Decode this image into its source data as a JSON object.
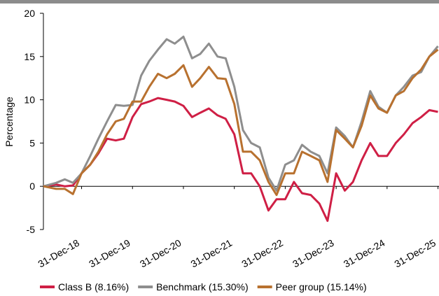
{
  "chart_data": {
    "type": "line",
    "y_label": "Percentage",
    "x": [
      2018.25,
      2018.5,
      2018.67,
      2018.83,
      2019.0,
      2019.17,
      2019.33,
      2019.5,
      2019.67,
      2019.83,
      2020.0,
      2020.17,
      2020.33,
      2020.5,
      2020.67,
      2020.83,
      2021.0,
      2021.17,
      2021.33,
      2021.5,
      2021.67,
      2021.83,
      2022.0,
      2022.17,
      2022.33,
      2022.5,
      2022.67,
      2022.83,
      2023.0,
      2023.17,
      2023.33,
      2023.5,
      2023.67,
      2023.83,
      2024.0,
      2024.17,
      2024.33,
      2024.5,
      2024.67,
      2024.83,
      2025.0,
      2025.17,
      2025.33,
      2025.5,
      2025.67,
      2025.83,
      2026.0
    ],
    "series": [
      {
        "name": "Class B (8.16%)",
        "color": "#cf1f45",
        "values": [
          0,
          0.2,
          0,
          0.1,
          1.5,
          2.5,
          3.8,
          5.5,
          5.3,
          5.5,
          8,
          9.5,
          9.8,
          10.2,
          10,
          9.8,
          9.3,
          8,
          8.5,
          9,
          8.2,
          7.8,
          6,
          1.5,
          1.5,
          0,
          -2.8,
          -1.5,
          -1.5,
          0.5,
          -0.8,
          -1,
          -2,
          -4,
          1.5,
          -0.5,
          0.5,
          3,
          5,
          3.5,
          3.5,
          5,
          6,
          7.3,
          8,
          8.8,
          8.6
        ]
      },
      {
        "name": "Benchmark (15.30%)",
        "color": "#8e8e8e",
        "values": [
          0,
          0.4,
          0.8,
          0.4,
          1.5,
          3.5,
          5.5,
          7.5,
          9.4,
          9.3,
          9.4,
          12.8,
          14.5,
          15.8,
          17,
          16.5,
          17.3,
          14.8,
          15.3,
          16.5,
          15,
          14.8,
          11.5,
          6.5,
          5,
          4.5,
          1,
          -0.5,
          2.5,
          3,
          4.8,
          4,
          3.5,
          1.5,
          6.8,
          5.8,
          4.5,
          7.5,
          11,
          9.2,
          8.5,
          10.5,
          11.5,
          12.8,
          13.2,
          15,
          16.2
        ]
      },
      {
        "name": "Peer group (15.14%)",
        "color": "#b8712f",
        "values": [
          0,
          -0.3,
          -0.3,
          -0.9,
          1.5,
          2.5,
          4,
          6,
          7.5,
          7.8,
          9.8,
          9.8,
          11.5,
          13,
          12.5,
          13,
          14,
          11.5,
          12.5,
          13.8,
          12.5,
          12.4,
          9.5,
          4,
          4,
          3,
          0.5,
          -1,
          1.5,
          1.5,
          4,
          3.5,
          3,
          0.5,
          6.5,
          5.5,
          4.5,
          7,
          10.5,
          9,
          8.5,
          10.5,
          11,
          12.5,
          13.5,
          15,
          15.8
        ]
      }
    ],
    "xlim": [
      2018.25,
      2026.02
    ],
    "xticks": [
      {
        "value": 2019.0,
        "label": "31-Dec-18"
      },
      {
        "value": 2020.0,
        "label": "31-Dec-19"
      },
      {
        "value": 2021.0,
        "label": "31-Dec-20"
      },
      {
        "value": 2022.0,
        "label": "31-Dec-21"
      },
      {
        "value": 2023.0,
        "label": "31-Dec-22"
      },
      {
        "value": 2024.0,
        "label": "31-Dec-23"
      },
      {
        "value": 2025.0,
        "label": "31-Dec-24"
      },
      {
        "value": 2026.0,
        "label": "31-Dec-25"
      }
    ],
    "ylim": [
      -5,
      20
    ],
    "yticks": [
      -5,
      0,
      5,
      10,
      15,
      20
    ],
    "grid": false
  }
}
